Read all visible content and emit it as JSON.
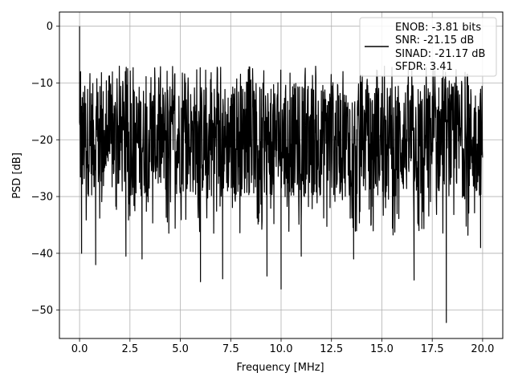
{
  "chart_data": {
    "type": "line",
    "title": "",
    "xlabel": "Frequency [MHz]",
    "ylabel": "PSD [dB]",
    "xlim": [
      -1.0,
      21.0
    ],
    "ylim": [
      -55,
      2.5
    ],
    "xticks": [
      0.0,
      2.5,
      5.0,
      7.5,
      10.0,
      12.5,
      15.0,
      17.5,
      20.0
    ],
    "xtick_labels": [
      "0.0",
      "2.5",
      "5.0",
      "7.5",
      "10.0",
      "12.5",
      "15.0",
      "17.5",
      "20.0"
    ],
    "yticks": [
      0,
      -10,
      -20,
      -30,
      -40,
      -50
    ],
    "ytick_labels": [
      "0",
      "−10",
      "−20",
      "−30",
      "−40",
      "−50"
    ],
    "grid": true,
    "legend_position": "upper-right",
    "series": [
      {
        "name": "ENOB: -3.81 bits\nSNR: -21.15 dB\nSINAD: -21.17 dB\nSFDR: 3.41",
        "color": "#000000",
        "x_range": [
          0.0,
          20.0
        ],
        "noise_band": [
          -30,
          -10
        ],
        "notable_points": [
          {
            "x": 0.0,
            "y": 0.0
          },
          {
            "x": 0.05,
            "y": -8
          },
          {
            "x": 0.1,
            "y": -40
          },
          {
            "x": 0.8,
            "y": -42
          },
          {
            "x": 2.3,
            "y": -40.5
          },
          {
            "x": 3.1,
            "y": -41
          },
          {
            "x": 6.0,
            "y": -45
          },
          {
            "x": 7.1,
            "y": -44.5
          },
          {
            "x": 9.3,
            "y": -44
          },
          {
            "x": 10.0,
            "y": -46.3
          },
          {
            "x": 11.0,
            "y": -40.5
          },
          {
            "x": 13.6,
            "y": -41
          },
          {
            "x": 16.6,
            "y": -44.7
          },
          {
            "x": 18.2,
            "y": -52.2
          },
          {
            "x": 19.9,
            "y": -39
          }
        ]
      }
    ]
  },
  "legend": {
    "lines": [
      "ENOB: -3.81 bits",
      "SNR: -21.15 dB",
      "SINAD: -21.17 dB",
      "SFDR: 3.41"
    ]
  }
}
